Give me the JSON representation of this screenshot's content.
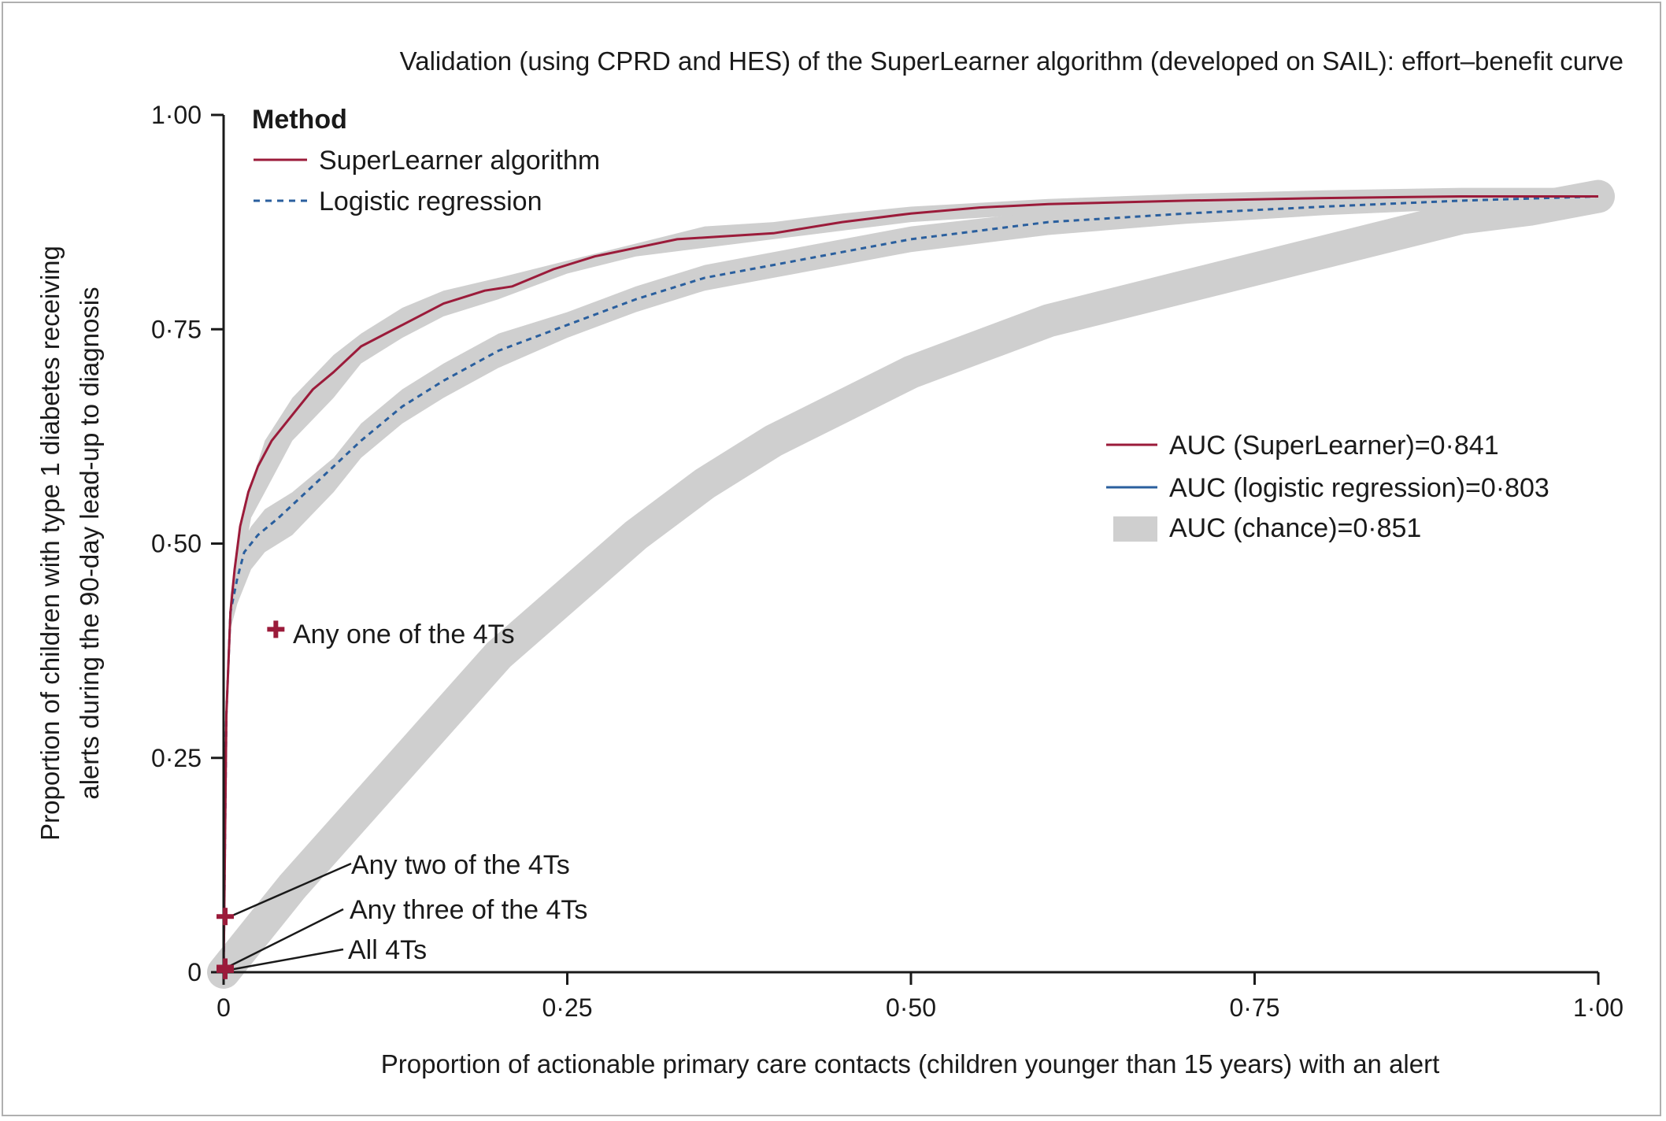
{
  "chart_data": {
    "type": "line",
    "title": "Validation (using CPRD and HES) of the SuperLearner algorithm (developed on SAIL): effort–benefit curve",
    "xlabel": "Proportion of actionable primary care contacts (children younger than 15 years) with an alert",
    "ylabel_line1": "Proportion of children with type 1 diabetes receiving",
    "ylabel_line2": "alerts during the 90-day lead-up to diagnosis",
    "xlim": [
      0,
      1
    ],
    "ylim": [
      0,
      1
    ],
    "x_ticks": [
      0,
      0.25,
      0.5,
      0.75,
      1.0
    ],
    "y_ticks": [
      0,
      0.25,
      0.5,
      0.75,
      1.0
    ],
    "x_tick_labels": [
      "0",
      "0·25",
      "0·50",
      "0·75",
      "1·00"
    ],
    "y_tick_labels": [
      "0",
      "0·25",
      "0·50",
      "0·75",
      "1·00"
    ],
    "legend_title": "Method",
    "series": [
      {
        "name": "SuperLearner algorithm",
        "color": "#9b1b3a",
        "style": "solid",
        "x": [
          0,
          0.002,
          0.005,
          0.008,
          0.012,
          0.018,
          0.025,
          0.035,
          0.05,
          0.065,
          0.08,
          0.1,
          0.13,
          0.16,
          0.19,
          0.21,
          0.24,
          0.27,
          0.3,
          0.33,
          0.36,
          0.4,
          0.45,
          0.5,
          0.55,
          0.6,
          0.7,
          0.8,
          0.9,
          1.0
        ],
        "y": [
          0.0,
          0.3,
          0.42,
          0.47,
          0.52,
          0.56,
          0.59,
          0.62,
          0.65,
          0.68,
          0.7,
          0.73,
          0.755,
          0.78,
          0.795,
          0.8,
          0.82,
          0.835,
          0.845,
          0.855,
          0.858,
          0.862,
          0.875,
          0.885,
          0.892,
          0.896,
          0.9,
          0.903,
          0.905,
          0.905
        ]
      },
      {
        "name": "Logistic regression",
        "color": "#2a5f9e",
        "style": "dashed",
        "x": [
          0,
          0.002,
          0.005,
          0.01,
          0.015,
          0.025,
          0.04,
          0.06,
          0.08,
          0.1,
          0.13,
          0.16,
          0.2,
          0.25,
          0.3,
          0.35,
          0.4,
          0.45,
          0.5,
          0.55,
          0.6,
          0.65,
          0.7,
          0.8,
          0.9,
          1.0
        ],
        "y": [
          0.0,
          0.3,
          0.42,
          0.46,
          0.49,
          0.51,
          0.53,
          0.56,
          0.59,
          0.62,
          0.66,
          0.69,
          0.725,
          0.755,
          0.785,
          0.81,
          0.825,
          0.84,
          0.855,
          0.865,
          0.875,
          0.88,
          0.885,
          0.893,
          0.9,
          0.905
        ]
      },
      {
        "name": "Chance (band)",
        "color": "#cfcfcf",
        "style": "band",
        "x": [
          0,
          0.05,
          0.1,
          0.15,
          0.2,
          0.25,
          0.3,
          0.35,
          0.4,
          0.45,
          0.5,
          0.55,
          0.6,
          0.65,
          0.7,
          0.75,
          0.8,
          0.85,
          0.9,
          0.95,
          1.0
        ],
        "y": [
          0.0,
          0.1,
          0.19,
          0.28,
          0.37,
          0.44,
          0.51,
          0.57,
          0.62,
          0.66,
          0.7,
          0.73,
          0.76,
          0.78,
          0.8,
          0.82,
          0.84,
          0.86,
          0.88,
          0.89,
          0.905
        ]
      }
    ],
    "superlearner_band": {
      "name": "SuperLearner CI band",
      "color": "#cfcfcf",
      "x": [
        0.002,
        0.005,
        0.01,
        0.02,
        0.03,
        0.05,
        0.08,
        0.1,
        0.13,
        0.16,
        0.2,
        0.25,
        0.3,
        0.35,
        0.4,
        0.45,
        0.5,
        0.6,
        0.7,
        0.8,
        0.9,
        1.0
      ],
      "y_lower": [
        0.28,
        0.4,
        0.44,
        0.53,
        0.56,
        0.62,
        0.67,
        0.71,
        0.74,
        0.765,
        0.785,
        0.815,
        0.835,
        0.845,
        0.855,
        0.865,
        0.875,
        0.885,
        0.89,
        0.895,
        0.895,
        0.895
      ],
      "y_upper": [
        0.32,
        0.44,
        0.5,
        0.57,
        0.62,
        0.67,
        0.72,
        0.745,
        0.775,
        0.795,
        0.81,
        0.83,
        0.85,
        0.87,
        0.875,
        0.885,
        0.893,
        0.902,
        0.908,
        0.912,
        0.915,
        0.915
      ]
    },
    "logistic_band": {
      "name": "Logistic regression CI band",
      "color": "#cfcfcf",
      "x": [
        0.002,
        0.005,
        0.01,
        0.02,
        0.03,
        0.05,
        0.08,
        0.1,
        0.13,
        0.16,
        0.2,
        0.25,
        0.3,
        0.35,
        0.4,
        0.45,
        0.5,
        0.6,
        0.7,
        0.8,
        0.9,
        1.0
      ],
      "y_lower": [
        0.28,
        0.4,
        0.43,
        0.47,
        0.49,
        0.51,
        0.56,
        0.6,
        0.64,
        0.67,
        0.705,
        0.74,
        0.77,
        0.795,
        0.81,
        0.825,
        0.84,
        0.86,
        0.873,
        0.883,
        0.89,
        0.895
      ],
      "y_upper": [
        0.32,
        0.44,
        0.49,
        0.52,
        0.54,
        0.56,
        0.6,
        0.64,
        0.68,
        0.71,
        0.745,
        0.77,
        0.8,
        0.825,
        0.84,
        0.855,
        0.87,
        0.888,
        0.895,
        0.9,
        0.905,
        0.91
      ]
    },
    "markers": [
      {
        "label": "Any one of the 4Ts",
        "x": 0.038,
        "y": 0.4,
        "color": "#9b1b3a"
      },
      {
        "label": "Any two of the 4Ts",
        "x": 0.0,
        "y": 0.065,
        "color": "#9b1b3a"
      },
      {
        "label": "Any three of the 4Ts",
        "x": 0.0,
        "y": 0.006,
        "color": "#9b1b3a"
      },
      {
        "label": "All 4Ts",
        "x": 0.0,
        "y": 0.002,
        "color": "#9b1b3a"
      }
    ],
    "auc_legend": [
      {
        "label": "AUC (SuperLearner)=0·841",
        "color": "#9b1b3a",
        "kind": "line"
      },
      {
        "label": "AUC (logistic regression)=0·803",
        "color": "#2a5f9e",
        "kind": "line"
      },
      {
        "label": "AUC (chance)=0·851",
        "color": "#cfcfcf",
        "kind": "band"
      }
    ],
    "legend_position": "top-left",
    "auc_legend_position": "right",
    "grid": false
  }
}
